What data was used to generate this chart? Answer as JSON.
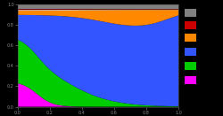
{
  "colors_stack": [
    "#ff00ff",
    "#00cc00",
    "#3355ff",
    "#ff8800",
    "#ffffff",
    "#cc0000",
    "#808080"
  ],
  "legend_colors": [
    "#808080",
    "#cc0000",
    "#ff8800",
    "#3355ff",
    "#00cc00",
    "#ff00ff"
  ],
  "background": "#000000",
  "axes_bg": "#000000",
  "figsize": [
    2.5,
    1.31
  ],
  "dpi": 100
}
